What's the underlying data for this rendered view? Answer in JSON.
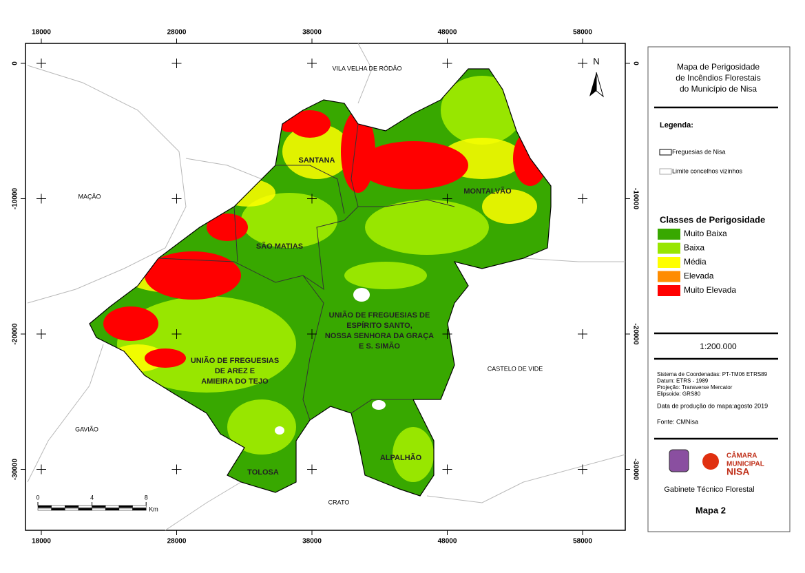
{
  "map": {
    "xticks": [
      18000,
      28000,
      38000,
      48000,
      58000
    ],
    "yticks": [
      0,
      -10000,
      -20000,
      -30000
    ],
    "north": "N",
    "places": [
      {
        "label": "VILA VELHA DE RÓDÃO"
      },
      {
        "label": "MAÇÃO"
      },
      {
        "label": "GAVIÃO"
      },
      {
        "label": "CRATO"
      },
      {
        "label": "CASTELO DE VIDE"
      }
    ],
    "parishes": [
      {
        "lines": [
          "SANTANA"
        ]
      },
      {
        "lines": [
          "MONTALVÃO"
        ]
      },
      {
        "lines": [
          "SÃO MATIAS"
        ]
      },
      {
        "lines": [
          "UNIÃO DE FREGUESIAS DE",
          "ESPÍRITO SANTO,",
          "NOSSA SENHORA DA GRAÇA",
          "E S. SIMÃO"
        ]
      },
      {
        "lines": [
          "UNIÃO DE FREGUESIAS",
          "DE AREZ E",
          "AMIEIRA DO TEJO"
        ]
      },
      {
        "lines": [
          "TOLOSA"
        ]
      },
      {
        "lines": [
          "ALPALHÃO"
        ]
      }
    ],
    "scale_bar": {
      "ticks": [
        0,
        4,
        8
      ],
      "unit": "Km"
    }
  },
  "panel": {
    "title": [
      "Mapa de Perigosidade",
      "de Incêndios Florestais",
      "do Município de Nisa"
    ],
    "legend_title": "Legenda:",
    "boundaries": [
      "Freguesias de Nisa",
      "Limite concelhos vizinhos"
    ],
    "classes_title": "Classes de Perigosidade",
    "classes": [
      {
        "label": "Muito Baixa",
        "color": "#38a800"
      },
      {
        "label": "Baixa",
        "color": "#98e600"
      },
      {
        "label": "Média",
        "color": "#ffff00"
      },
      {
        "label": "Elevada",
        "color": "#ff8c00"
      },
      {
        "label": "Muito Elevada",
        "color": "#ff0000"
      }
    ],
    "scale": "1:200.000",
    "info": [
      "Sistema de Coordenadas: PT-TM06 ETRS89",
      "Datum:  ETRS - 1989",
      "Projeção: Transverse Mercator",
      "Elipsoide: GRS80"
    ],
    "date": "Data de produção do mapa:agosto 2019",
    "source": "Fonte: CMNisa",
    "logo_text": [
      "CÂMARA",
      "MUNICIPAL",
      "NISA"
    ],
    "office": "Gabinete Técnico Florestal",
    "map_number": "Mapa 2"
  }
}
